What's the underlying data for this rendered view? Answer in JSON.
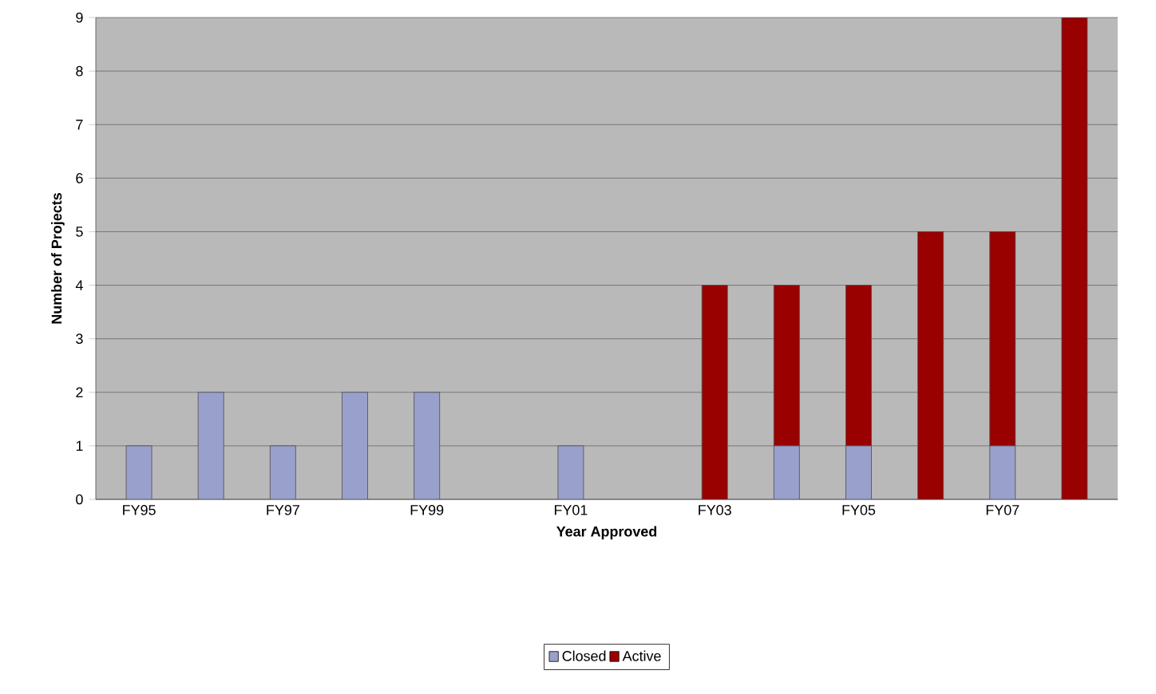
{
  "chart_data": {
    "type": "bar",
    "stacked": true,
    "xlabel": "Year Approved",
    "ylabel": "Number of Projects",
    "categories": [
      "FY95",
      null,
      "FY97",
      null,
      "FY99",
      null,
      "FY01",
      null,
      "FY03",
      null,
      "FY05",
      null,
      "FY07",
      null
    ],
    "series": [
      {
        "name": "Closed",
        "color": "#9aa0cc",
        "values": [
          1,
          2,
          1,
          2,
          2,
          0,
          1,
          0,
          0,
          1,
          1,
          0,
          1,
          0
        ]
      },
      {
        "name": "Active",
        "color": "#990000",
        "values": [
          0,
          0,
          0,
          0,
          0,
          0,
          0,
          0,
          4,
          3,
          3,
          5,
          4,
          9
        ]
      }
    ],
    "ylim": [
      0,
      9
    ],
    "yticks": [
      0,
      1,
      2,
      3,
      4,
      5,
      6,
      7,
      8,
      9
    ],
    "grid": "y",
    "legend": "bottom"
  }
}
